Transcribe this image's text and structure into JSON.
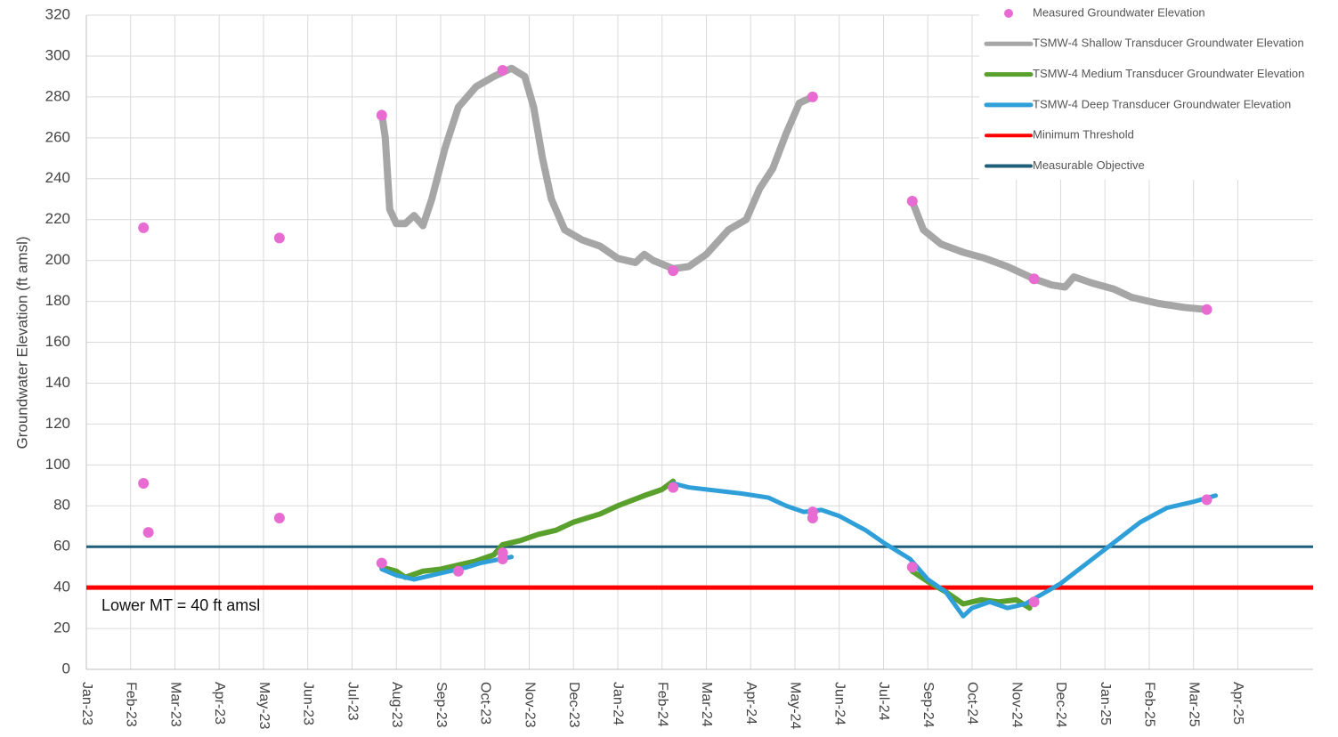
{
  "chart_data": {
    "type": "line",
    "y_label": "Groundwater Elevation (ft amsl)",
    "xlim": [
      0,
      27.7
    ],
    "xticks": [
      {
        "value": 0,
        "label": "Jan-23"
      },
      {
        "value": 1,
        "label": "Feb-23"
      },
      {
        "value": 2,
        "label": "Mar-23"
      },
      {
        "value": 3,
        "label": "Apr-23"
      },
      {
        "value": 4,
        "label": "May-23"
      },
      {
        "value": 5,
        "label": "Jun-23"
      },
      {
        "value": 6,
        "label": "Jul-23"
      },
      {
        "value": 7,
        "label": "Aug-23"
      },
      {
        "value": 8,
        "label": "Sep-23"
      },
      {
        "value": 9,
        "label": "Oct-23"
      },
      {
        "value": 10,
        "label": "Nov-23"
      },
      {
        "value": 11,
        "label": "Dec-23"
      },
      {
        "value": 12,
        "label": "Jan-24"
      },
      {
        "value": 13,
        "label": "Feb-24"
      },
      {
        "value": 14,
        "label": "Mar-24"
      },
      {
        "value": 15,
        "label": "Apr-24"
      },
      {
        "value": 16,
        "label": "May-24"
      },
      {
        "value": 17,
        "label": "Jun-24"
      },
      {
        "value": 18,
        "label": "Jul-24"
      },
      {
        "value": 19,
        "label": "Sep-24"
      },
      {
        "value": 20,
        "label": "Oct-24"
      },
      {
        "value": 21,
        "label": "Nov-24"
      },
      {
        "value": 22,
        "label": "Dec-24"
      },
      {
        "value": 23,
        "label": "Jan-25"
      },
      {
        "value": 24,
        "label": "Feb-25"
      },
      {
        "value": 25,
        "label": "Mar-25"
      },
      {
        "value": 26,
        "label": "Apr-25"
      }
    ],
    "ylim": [
      0,
      320
    ],
    "yticks": [
      0,
      20,
      40,
      60,
      80,
      100,
      120,
      140,
      160,
      180,
      200,
      220,
      240,
      260,
      280,
      300,
      320
    ],
    "grid": true,
    "legend": "top-right",
    "series": [
      {
        "name": "Measured Groundwater Elevation",
        "type": "scatter",
        "color": "#e86bd2",
        "x": [
          1.29,
          1.29,
          1.4,
          4.36,
          4.36,
          6.67,
          6.67,
          8.4,
          9.4,
          9.4,
          9.4,
          13.25,
          13.25,
          16.4,
          16.4,
          16.4,
          18.65,
          18.65,
          21.4,
          21.4,
          25.3,
          25.3
        ],
        "values": [
          216,
          91,
          67,
          211,
          74,
          271,
          52,
          48,
          293,
          57,
          54,
          195,
          89,
          280,
          77,
          74,
          229,
          50,
          191,
          33,
          176,
          83
        ]
      },
      {
        "name": "TSMW-4 Shallow Transducer Groundwater Elevation",
        "type": "line",
        "width": 8,
        "color": "#a6a6a6",
        "x": [
          6.67,
          6.75,
          6.85,
          7.0,
          7.2,
          7.4,
          7.6,
          7.8,
          8.1,
          8.4,
          8.8,
          9.2,
          9.6,
          9.9,
          10.1,
          10.3,
          10.5,
          10.8,
          11.2,
          11.6,
          12.0,
          12.4,
          12.6,
          12.8,
          13.25,
          13.6,
          14.0,
          14.5,
          14.9,
          15.2,
          15.5,
          15.8,
          16.1,
          16.4,
          17.5,
          18.65,
          18.9,
          19.3,
          19.8,
          20.3,
          20.8,
          21.4,
          21.8,
          22.1,
          22.3,
          22.7,
          23.2,
          23.6,
          24.2,
          24.8,
          25.3
        ],
        "values": [
          272,
          260,
          225,
          218,
          218,
          222,
          217,
          230,
          255,
          275,
          285,
          290,
          294,
          290,
          275,
          250,
          230,
          215,
          210,
          207,
          201,
          199,
          203,
          200,
          196,
          197,
          203,
          215,
          220,
          235,
          245,
          262,
          277,
          280,
          null,
          229,
          215,
          208,
          204,
          201,
          197,
          191,
          188,
          187,
          192,
          189,
          186,
          182,
          179,
          177,
          176
        ]
      },
      {
        "name": "TSMW-4 Medium Transducer Groundwater Elevation",
        "type": "line",
        "width": 6,
        "color": "#5aa02c",
        "x": [
          6.67,
          7.0,
          7.2,
          7.6,
          8.0,
          8.4,
          8.8,
          9.2,
          9.4,
          9.8,
          10.2,
          10.6,
          11.0,
          11.6,
          12.0,
          12.6,
          13.0,
          13.25,
          16.0,
          18.65,
          19.0,
          19.4,
          19.8,
          20.2,
          20.6,
          21.0,
          21.3
        ],
        "values": [
          50,
          48,
          45,
          48,
          49,
          51,
          53,
          56,
          61,
          63,
          66,
          68,
          72,
          76,
          80,
          85,
          88,
          92,
          null,
          48,
          43,
          38,
          32,
          34,
          33,
          34,
          30
        ]
      },
      {
        "name": "TSMW-4 Deep Transducer Groundwater Elevation",
        "type": "line",
        "width": 5,
        "color": "#2e9fd8",
        "x": [
          6.67,
          7.0,
          7.4,
          7.8,
          8.2,
          8.6,
          8.9,
          9.6,
          11.5,
          13.25,
          13.6,
          14.0,
          14.8,
          15.4,
          15.8,
          16.2,
          16.6,
          17.0,
          17.6,
          18.0,
          18.6,
          19.0,
          19.4,
          19.6,
          19.8,
          20.0,
          20.4,
          20.8,
          21.2,
          21.6,
          22.0,
          22.6,
          23.2,
          23.8,
          24.4,
          25.0,
          25.5
        ],
        "values": [
          49,
          46,
          44,
          46,
          48,
          50,
          52,
          55,
          null,
          91,
          89,
          88,
          86,
          84,
          80,
          77,
          78,
          75,
          68,
          62,
          54,
          44,
          38,
          32,
          26,
          30,
          33,
          30,
          32,
          37,
          42,
          52,
          62,
          72,
          79,
          82,
          85
        ]
      }
    ],
    "thresholds": [
      {
        "name": "Minimum Threshold",
        "value": 40,
        "color": "#ff0000"
      },
      {
        "name": "Measurable Objective",
        "value": 60,
        "color": "#1f5f7a"
      }
    ],
    "annotation": "Lower MT = 40 ft amsl"
  }
}
